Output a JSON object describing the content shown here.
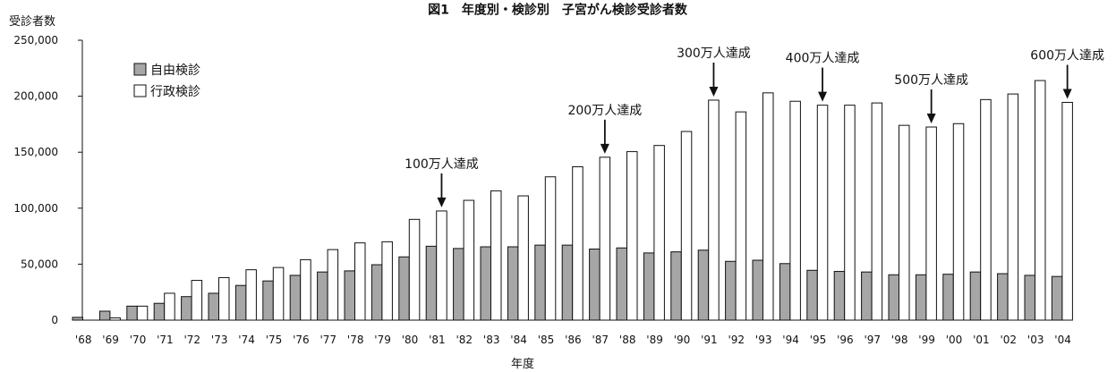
{
  "chart_data": {
    "type": "bar",
    "title": "図1　年度別・検診別　子宮がん検診受診者数",
    "ylabel": "受診者数",
    "xlabel": "年度",
    "ylim": [
      0,
      250000
    ],
    "yticks": [
      "0",
      "50,000",
      "100,000",
      "150,000",
      "200,000",
      "250,000"
    ],
    "ytick_values": [
      0,
      50000,
      100000,
      150000,
      200000,
      250000
    ],
    "categories": [
      "'68",
      "'69",
      "'70",
      "'71",
      "'72",
      "'73",
      "'74",
      "'75",
      "'76",
      "'77",
      "'78",
      "'79",
      "'80",
      "'81",
      "'82",
      "'83",
      "'84",
      "'85",
      "'86",
      "'87",
      "'88",
      "'89",
      "'90",
      "'91",
      "'92",
      "'93",
      "'94",
      "'95",
      "'96",
      "'97",
      "'98",
      "'99",
      "'00",
      "'01",
      "'02",
      "'03",
      "'04"
    ],
    "series": [
      {
        "name": "自由検診",
        "color": "#a6a6a6",
        "values": [
          2500,
          8000,
          12500,
          15000,
          21000,
          24000,
          31000,
          35000,
          40000,
          43000,
          44000,
          49500,
          56500,
          66000,
          64000,
          65500,
          65500,
          67000,
          67000,
          63500,
          64500,
          60000,
          61000,
          62500,
          52500,
          53500,
          50500,
          44500,
          43500,
          43000,
          40500,
          40500,
          41000,
          43000,
          41500,
          40000,
          39000
        ]
      },
      {
        "name": "行政検診",
        "color": "#ffffff",
        "values": [
          0,
          2000,
          12500,
          24000,
          35500,
          38000,
          45000,
          47000,
          54000,
          63000,
          69000,
          70000,
          90000,
          97500,
          107000,
          115500,
          111000,
          128000,
          137000,
          145500,
          150500,
          156000,
          168500,
          196500,
          186000,
          203000,
          195500,
          192000,
          192000,
          194000,
          174000,
          172500,
          175500,
          197000,
          202000,
          214000,
          194500
        ]
      }
    ],
    "annotations": [
      {
        "text": "100万人達成",
        "category": "'81"
      },
      {
        "text": "200万人達成",
        "category": "'87"
      },
      {
        "text": "300万人達成",
        "category": "'91"
      },
      {
        "text": "400万人達成",
        "category": "'95"
      },
      {
        "text": "500万人達成",
        "category": "'99"
      },
      {
        "text": "600万人達成",
        "category": "'04"
      }
    ],
    "legend_position": "top-left",
    "grid": false
  }
}
